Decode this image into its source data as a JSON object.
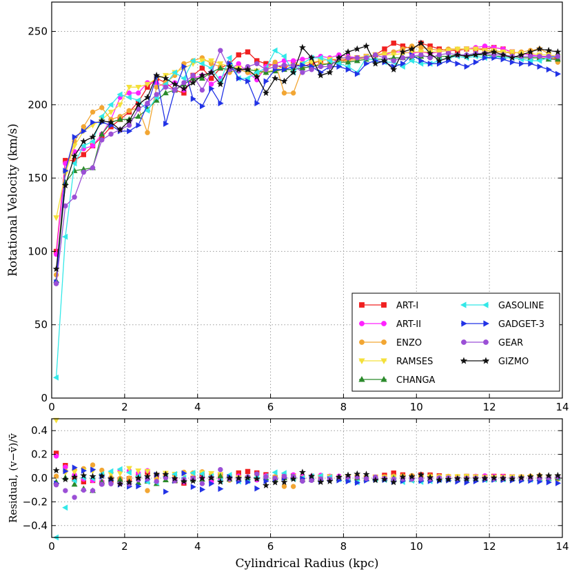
{
  "chart_data": [
    {
      "type": "line",
      "panel": "top",
      "ylabel": "Rotational Velocity (km/s)",
      "xlabel": "",
      "xlim": [
        0,
        14
      ],
      "ylim": [
        0,
        270
      ],
      "xticks": [
        0,
        2,
        4,
        6,
        8,
        10,
        12,
        14
      ],
      "yticks": [
        0,
        50,
        100,
        150,
        200,
        250
      ],
      "grid": true,
      "legend": {
        "placement": "bottom-right",
        "columns": 2
      },
      "x": [
        0.125,
        0.375,
        0.625,
        0.875,
        1.125,
        1.375,
        1.625,
        1.875,
        2.125,
        2.375,
        2.625,
        2.875,
        3.125,
        3.375,
        3.625,
        3.875,
        4.125,
        4.375,
        4.625,
        4.875,
        5.125,
        5.375,
        5.625,
        5.875,
        6.125,
        6.375,
        6.625,
        6.875,
        7.125,
        7.375,
        7.625,
        7.875,
        8.125,
        8.375,
        8.625,
        8.875,
        9.125,
        9.375,
        9.625,
        9.875,
        10.125,
        10.375,
        10.625,
        10.875,
        11.125,
        11.375,
        11.625,
        11.875,
        12.125,
        12.375,
        12.625,
        12.875,
        13.125,
        13.375,
        13.625,
        13.875
      ],
      "series": [
        {
          "name": "ART-I",
          "color": "#f02020",
          "marker": "square",
          "values": [
            100,
            162,
            162,
            166,
            172,
            178,
            185,
            190,
            195,
            202,
            212,
            218,
            215,
            210,
            208,
            220,
            225,
            218,
            225,
            228,
            234,
            236,
            230,
            228,
            227,
            225,
            228,
            226,
            228,
            230,
            231,
            230,
            231,
            232,
            233,
            234,
            238,
            242,
            240,
            238,
            242,
            240,
            238,
            237,
            237,
            238,
            238,
            238,
            239,
            238,
            236,
            235,
            234,
            233,
            232,
            232
          ]
        },
        {
          "name": "ART-II",
          "color": "#ff22ff",
          "marker": "circle",
          "values": [
            98,
            160,
            168,
            170,
            172,
            180,
            190,
            205,
            208,
            208,
            215,
            215,
            212,
            215,
            210,
            218,
            220,
            214,
            218,
            224,
            228,
            222,
            217,
            226,
            228,
            230,
            230,
            231,
            232,
            233,
            232,
            234,
            233,
            232,
            233,
            234,
            234,
            236,
            236,
            235,
            236,
            235,
            236,
            237,
            238,
            238,
            239,
            240,
            239,
            238,
            236,
            235,
            234,
            233,
            232,
            230
          ]
        },
        {
          "name": "ENZO",
          "color": "#f2a633",
          "marker": "circle",
          "values": [
            84,
            155,
            175,
            185,
            195,
            198,
            190,
            192,
            196,
            198,
            181,
            212,
            215,
            220,
            228,
            230,
            232,
            228,
            226,
            222,
            224,
            222,
            220,
            224,
            229,
            208,
            208,
            225,
            226,
            228,
            228,
            230,
            230,
            231,
            232,
            234,
            235,
            236,
            238,
            240,
            239,
            238,
            237,
            238,
            238,
            238,
            238,
            237,
            236,
            236,
            235,
            236,
            237,
            238,
            235,
            229
          ]
        },
        {
          "name": "RAMSES",
          "color": "#f4e03a",
          "marker": "triangle-down",
          "values": [
            123,
            153,
            172,
            182,
            186,
            190,
            195,
            200,
            212,
            212,
            214,
            218,
            220,
            222,
            225,
            228,
            230,
            230,
            228,
            226,
            225,
            224,
            223,
            222,
            224,
            226,
            227,
            228,
            229,
            230,
            231,
            231,
            232,
            232,
            233,
            234,
            234,
            234,
            235,
            236,
            236,
            236,
            236,
            237,
            238,
            238,
            238,
            237,
            237,
            236,
            236,
            235,
            235,
            234,
            234,
            233
          ]
        },
        {
          "name": "CHANGA",
          "color": "#2b8a2b",
          "marker": "triangle-up",
          "values": [
            80,
            147,
            155,
            156,
            157,
            180,
            188,
            190,
            190,
            192,
            197,
            203,
            208,
            210,
            214,
            218,
            218,
            222,
            225,
            224,
            224,
            224,
            223,
            222,
            223,
            224,
            224,
            225,
            226,
            227,
            228,
            229,
            229,
            230,
            231,
            231,
            231,
            232,
            232,
            232,
            233,
            233,
            233,
            233,
            234,
            234,
            234,
            234,
            233,
            233,
            233,
            232,
            232,
            232,
            231,
            231
          ]
        },
        {
          "name": "GASOLINE",
          "color": "#33e8e8",
          "marker": "triangle-left",
          "values": [
            14,
            110,
            160,
            172,
            175,
            192,
            200,
            207,
            205,
            203,
            196,
            205,
            214,
            222,
            218,
            230,
            228,
            225,
            216,
            232,
            218,
            218,
            222,
            225,
            237,
            233,
            222,
            228,
            232,
            232,
            230,
            228,
            226,
            222,
            232,
            230,
            229,
            229,
            226,
            230,
            228,
            228,
            230,
            232,
            233,
            232,
            233,
            232,
            233,
            232,
            232,
            231,
            230,
            230,
            232,
            233
          ]
        },
        {
          "name": "GADGET-3",
          "color": "#2233e6",
          "marker": "triangle-right",
          "values": [
            79,
            155,
            178,
            182,
            188,
            188,
            186,
            182,
            182,
            186,
            200,
            219,
            187,
            210,
            226,
            204,
            199,
            211,
            201,
            228,
            218,
            216,
            201,
            216,
            224,
            224,
            226,
            227,
            226,
            222,
            226,
            226,
            224,
            221,
            228,
            230,
            229,
            226,
            228,
            234,
            230,
            228,
            228,
            230,
            228,
            226,
            229,
            232,
            232,
            231,
            229,
            228,
            228,
            226,
            224,
            221
          ]
        },
        {
          "name": "GEAR",
          "color": "#9b4fd6",
          "marker": "circle",
          "values": [
            78,
            131,
            137,
            154,
            157,
            176,
            180,
            183,
            186,
            197,
            201,
            207,
            212,
            210,
            215,
            220,
            210,
            222,
            237,
            224,
            223,
            226,
            228,
            224,
            226,
            227,
            227,
            222,
            224,
            226,
            226,
            232,
            232,
            232,
            232,
            234,
            232,
            230,
            232,
            233,
            234,
            232,
            234,
            235,
            234,
            234,
            235,
            235,
            234,
            234,
            233,
            233,
            233,
            233,
            233,
            233
          ]
        },
        {
          "name": "GIZMO",
          "color": "#111111",
          "marker": "star",
          "values": [
            88,
            145,
            165,
            175,
            178,
            189,
            188,
            183,
            189,
            200,
            205,
            220,
            218,
            214,
            211,
            215,
            220,
            222,
            214,
            226,
            224,
            224,
            219,
            208,
            218,
            216,
            222,
            239,
            232,
            220,
            222,
            232,
            236,
            238,
            240,
            228,
            230,
            224,
            236,
            238,
            242,
            235,
            230,
            232,
            234,
            233,
            234,
            235,
            236,
            234,
            232,
            234,
            236,
            238,
            237,
            236
          ]
        }
      ]
    },
    {
      "type": "scatter",
      "panel": "bottom",
      "xlabel": "Cylindrical Radius (kpc)",
      "ylabel": "Residual, (v−v̄)/v̄",
      "xlim": [
        0,
        14
      ],
      "ylim": [
        -0.5,
        0.5
      ],
      "xticks": [
        0,
        2,
        4,
        6,
        8,
        10,
        12,
        14
      ],
      "yticks": [
        -0.4,
        -0.2,
        0.0,
        0.2,
        0.4
      ],
      "grid": true
    }
  ],
  "axes": {
    "top": {
      "ylabel": "Rotational Velocity (km/s)",
      "xticklabels": [
        "0",
        "2",
        "4",
        "6",
        "8",
        "10",
        "12",
        "14"
      ],
      "yticklabels": [
        "0",
        "50",
        "100",
        "150",
        "200",
        "250"
      ]
    },
    "bottom": {
      "xlabel": "Cylindrical Radius (kpc)",
      "ylabel": "Residual, (v−v̄)/v̄",
      "xticklabels": [
        "0",
        "2",
        "4",
        "6",
        "8",
        "10",
        "12",
        "14"
      ],
      "yticklabels": [
        "−0.4",
        "−0.2",
        "0.0",
        "0.2",
        "0.4"
      ]
    }
  }
}
